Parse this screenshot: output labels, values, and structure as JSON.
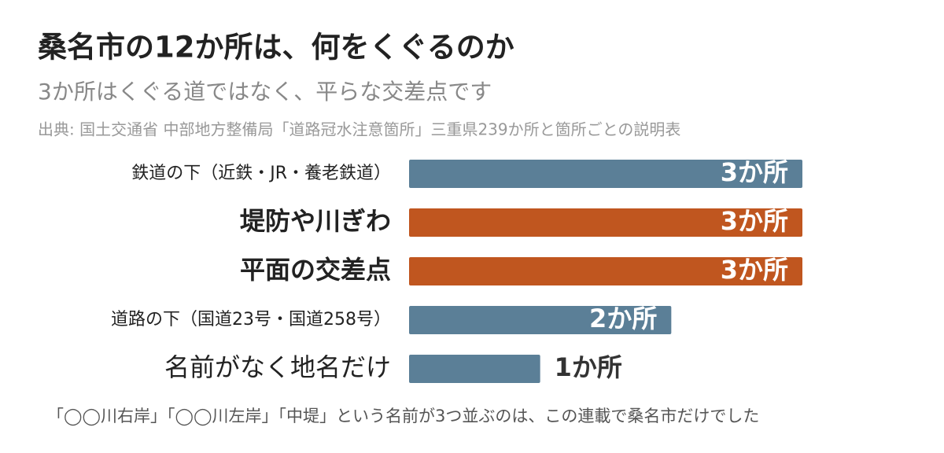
{
  "chart_data": {
    "type": "bar",
    "orientation": "horizontal",
    "title": "桑名市の12か所は、何をくぐるのか",
    "subtitle": "3か所はくぐる道ではなく、平らな交差点です",
    "source": "出典: 国土交通省 中部地方整備局「道路冠水注意箇所」三重県239か所と箇所ごとの説明表",
    "note": "「◯◯川右岸」「◯◯川左岸」「中堤」という名前が3つ並ぶのは、この連載で桑名市だけでした",
    "categories": [
      "鉄道の下（近鉄・JR・養老鉄道）",
      "堤防や川ぎわ",
      "平面の交差点",
      "道路の下（国道23号・国道258号）",
      "名前がなく地名だけ"
    ],
    "values": [
      3,
      3,
      3,
      2,
      1
    ],
    "value_labels": [
      "3か所",
      "3か所",
      "3か所",
      "2か所",
      "1か所"
    ],
    "colors": [
      "#5b7f97",
      "#c0561f",
      "#c0561f",
      "#5b7f97",
      "#5b7f97"
    ]
  }
}
